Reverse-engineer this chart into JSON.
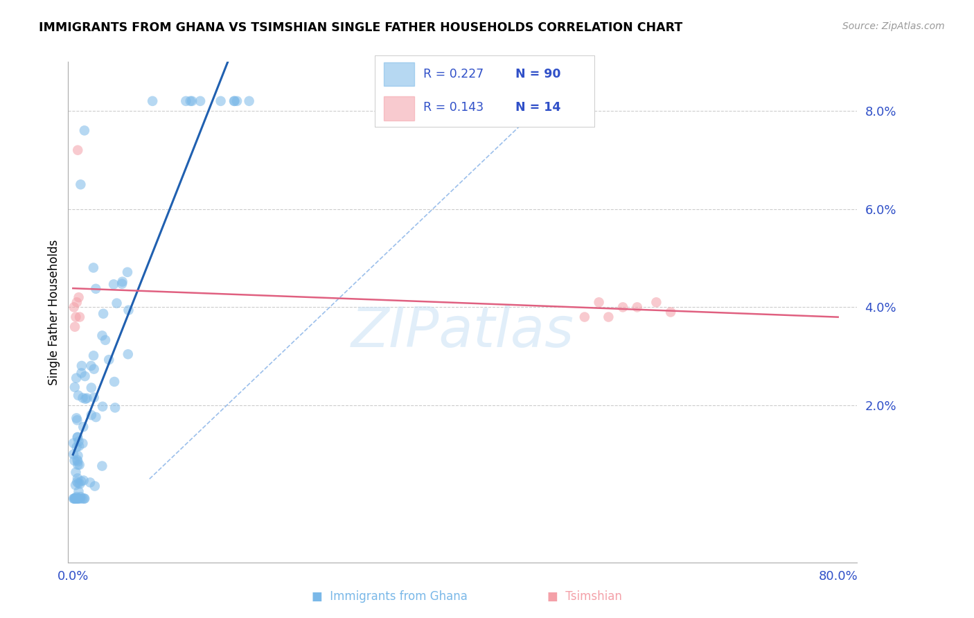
{
  "title": "IMMIGRANTS FROM GHANA VS TSIMSHIAN SINGLE FATHER HOUSEHOLDS CORRELATION CHART",
  "source": "Source: ZipAtlas.com",
  "ylabel": "Single Father Households",
  "xlim": [
    -0.005,
    0.82
  ],
  "ylim": [
    -0.012,
    0.09
  ],
  "yticks": [
    0.02,
    0.04,
    0.06,
    0.08
  ],
  "ytick_labels": [
    "2.0%",
    "4.0%",
    "6.0%",
    "8.0%"
  ],
  "xticks": [
    0.0,
    0.8
  ],
  "xtick_labels": [
    "0.0%",
    "80.0%"
  ],
  "ghana_color": "#7ab8e8",
  "tsimshian_color": "#f4a0a8",
  "ghana_line_color": "#2060b0",
  "tsimshian_line_color": "#e06080",
  "ref_line_color": "#8ab4e8",
  "ghana_R": 0.227,
  "ghana_N": 90,
  "tsimshian_R": 0.143,
  "tsimshian_N": 14,
  "axis_color": "#3050c8",
  "grid_color": "#cccccc",
  "watermark": "ZIPatlas",
  "legend_box_color": "#e8e8f8",
  "bottom_legend_ghana": "Immigrants from Ghana",
  "bottom_legend_tsimshian": "Tsimshian"
}
